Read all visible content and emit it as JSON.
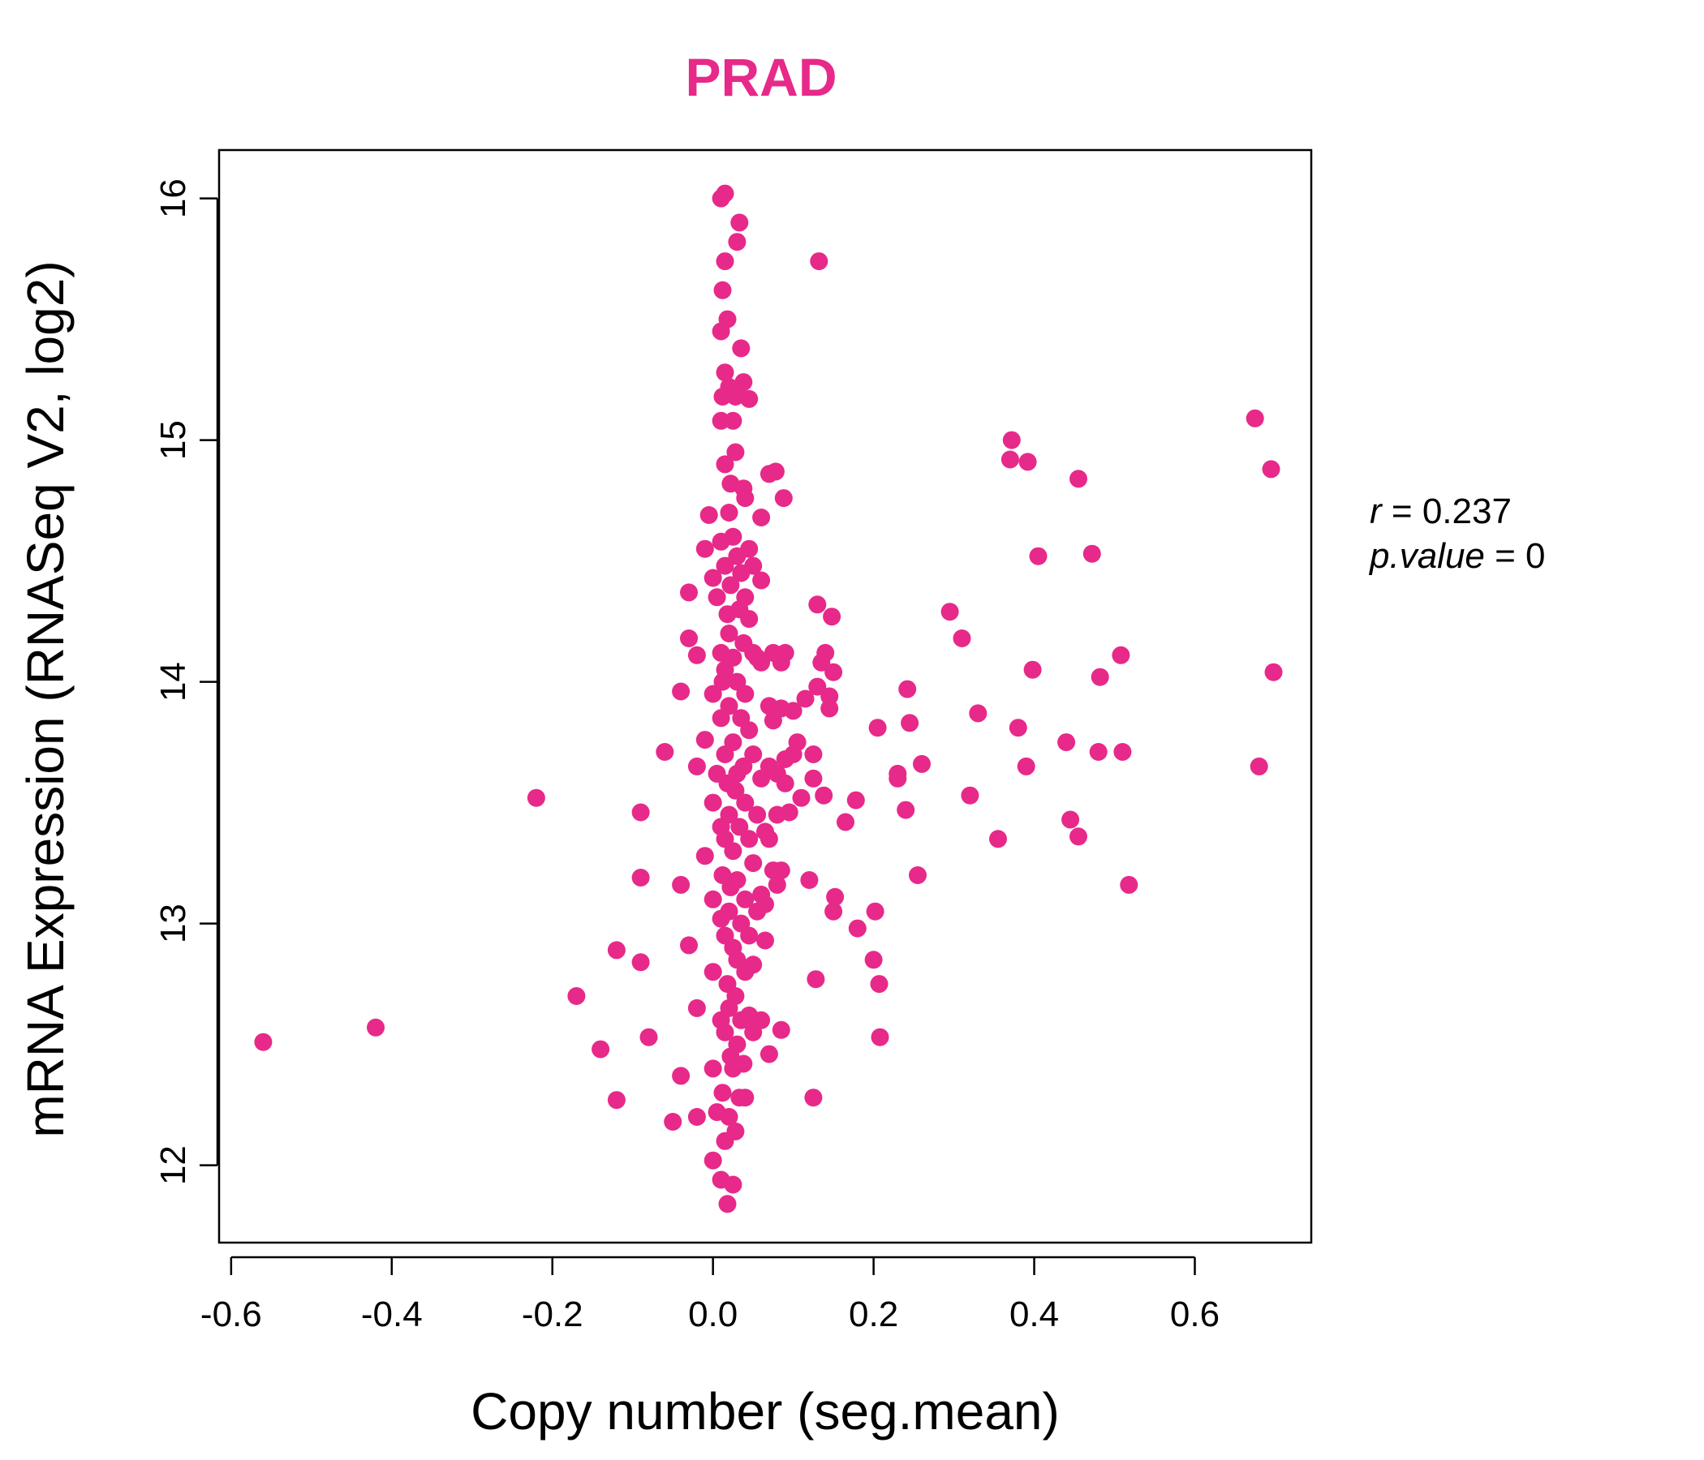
{
  "chart_data": {
    "type": "scatter",
    "title": "PRAD",
    "xlabel": "Copy number (seg.mean)",
    "ylabel": "mRNA Expression (RNASeq V2, log2)",
    "xlim": [
      -0.615,
      0.745
    ],
    "ylim": [
      11.68,
      16.2
    ],
    "xticks": [
      -0.6,
      -0.4,
      -0.2,
      0.0,
      0.2,
      0.4,
      0.6
    ],
    "xtick_labels": [
      "-0.6",
      "-0.4",
      "-0.2",
      "0.0",
      "0.2",
      "0.4",
      "0.6"
    ],
    "yticks": [
      12,
      13,
      14,
      15,
      16
    ],
    "ytick_labels": [
      "12",
      "13",
      "14",
      "15",
      "16"
    ],
    "grid": false,
    "point_color": "#e7298a",
    "annotation": {
      "r_label": "r",
      "r_value": "0.237",
      "p_label": "p.value",
      "p_value": "0"
    },
    "points": [
      [
        -0.56,
        12.51
      ],
      [
        -0.42,
        12.57
      ],
      [
        -0.22,
        13.52
      ],
      [
        -0.17,
        12.7
      ],
      [
        -0.14,
        12.48
      ],
      [
        -0.12,
        12.27
      ],
      [
        -0.12,
        12.89
      ],
      [
        -0.09,
        13.46
      ],
      [
        -0.09,
        13.19
      ],
      [
        -0.09,
        12.84
      ],
      [
        -0.08,
        12.53
      ],
      [
        -0.06,
        13.71
      ],
      [
        -0.05,
        12.18
      ],
      [
        -0.04,
        13.96
      ],
      [
        -0.04,
        13.16
      ],
      [
        -0.04,
        12.37
      ],
      [
        -0.03,
        12.91
      ],
      [
        -0.03,
        14.37
      ],
      [
        -0.03,
        14.18
      ],
      [
        -0.02,
        14.11
      ],
      [
        -0.02,
        13.65
      ],
      [
        -0.02,
        12.2
      ],
      [
        -0.02,
        12.65
      ],
      [
        -0.01,
        14.55
      ],
      [
        -0.01,
        13.76
      ],
      [
        -0.01,
        13.28
      ],
      [
        -0.005,
        14.69
      ],
      [
        0.0,
        14.43
      ],
      [
        0.0,
        13.95
      ],
      [
        0.0,
        13.5
      ],
      [
        0.0,
        13.1
      ],
      [
        0.0,
        12.8
      ],
      [
        0.0,
        12.4
      ],
      [
        0.0,
        12.02
      ],
      [
        0.005,
        14.35
      ],
      [
        0.005,
        13.62
      ],
      [
        0.005,
        12.22
      ],
      [
        0.01,
        16.0
      ],
      [
        0.01,
        15.45
      ],
      [
        0.01,
        15.08
      ],
      [
        0.01,
        14.58
      ],
      [
        0.01,
        14.12
      ],
      [
        0.01,
        13.85
      ],
      [
        0.01,
        13.4
      ],
      [
        0.01,
        13.02
      ],
      [
        0.01,
        12.6
      ],
      [
        0.01,
        11.94
      ],
      [
        0.012,
        15.62
      ],
      [
        0.012,
        15.18
      ],
      [
        0.012,
        14.0
      ],
      [
        0.012,
        13.2
      ],
      [
        0.012,
        12.3
      ],
      [
        0.015,
        16.02
      ],
      [
        0.015,
        15.74
      ],
      [
        0.015,
        15.28
      ],
      [
        0.015,
        14.9
      ],
      [
        0.015,
        14.48
      ],
      [
        0.015,
        14.05
      ],
      [
        0.015,
        13.7
      ],
      [
        0.015,
        13.35
      ],
      [
        0.015,
        12.95
      ],
      [
        0.015,
        12.55
      ],
      [
        0.015,
        12.1
      ],
      [
        0.018,
        15.5
      ],
      [
        0.018,
        14.28
      ],
      [
        0.018,
        13.58
      ],
      [
        0.018,
        12.75
      ],
      [
        0.018,
        11.84
      ],
      [
        0.02,
        15.22
      ],
      [
        0.02,
        14.7
      ],
      [
        0.02,
        14.2
      ],
      [
        0.02,
        13.9
      ],
      [
        0.02,
        13.45
      ],
      [
        0.02,
        13.05
      ],
      [
        0.02,
        12.65
      ],
      [
        0.02,
        12.2
      ],
      [
        0.022,
        14.82
      ],
      [
        0.022,
        14.4
      ],
      [
        0.022,
        13.15
      ],
      [
        0.022,
        12.45
      ],
      [
        0.025,
        15.08
      ],
      [
        0.025,
        14.6
      ],
      [
        0.025,
        14.1
      ],
      [
        0.025,
        13.75
      ],
      [
        0.025,
        13.3
      ],
      [
        0.025,
        12.9
      ],
      [
        0.025,
        12.4
      ],
      [
        0.025,
        11.92
      ],
      [
        0.028,
        15.18
      ],
      [
        0.028,
        14.95
      ],
      [
        0.028,
        13.55
      ],
      [
        0.028,
        12.7
      ],
      [
        0.028,
        12.14
      ],
      [
        0.03,
        15.82
      ],
      [
        0.03,
        15.2
      ],
      [
        0.03,
        14.52
      ],
      [
        0.03,
        14.0
      ],
      [
        0.03,
        13.62
      ],
      [
        0.03,
        13.18
      ],
      [
        0.03,
        12.85
      ],
      [
        0.03,
        12.5
      ],
      [
        0.033,
        15.9
      ],
      [
        0.033,
        14.3
      ],
      [
        0.033,
        13.4
      ],
      [
        0.033,
        12.28
      ],
      [
        0.035,
        15.38
      ],
      [
        0.035,
        14.45
      ],
      [
        0.035,
        13.85
      ],
      [
        0.035,
        13.0
      ],
      [
        0.035,
        12.6
      ],
      [
        0.038,
        15.24
      ],
      [
        0.038,
        14.8
      ],
      [
        0.038,
        14.16
      ],
      [
        0.038,
        13.65
      ],
      [
        0.038,
        12.42
      ],
      [
        0.04,
        14.76
      ],
      [
        0.04,
        14.35
      ],
      [
        0.04,
        13.95
      ],
      [
        0.04,
        13.5
      ],
      [
        0.04,
        13.1
      ],
      [
        0.04,
        12.8
      ],
      [
        0.04,
        12.28
      ],
      [
        0.045,
        15.17
      ],
      [
        0.045,
        14.55
      ],
      [
        0.045,
        14.26
      ],
      [
        0.045,
        13.8
      ],
      [
        0.045,
        13.35
      ],
      [
        0.045,
        12.95
      ],
      [
        0.045,
        12.62
      ],
      [
        0.05,
        14.48
      ],
      [
        0.05,
        14.12
      ],
      [
        0.05,
        13.7
      ],
      [
        0.05,
        13.25
      ],
      [
        0.05,
        12.83
      ],
      [
        0.05,
        12.55
      ],
      [
        0.055,
        14.1
      ],
      [
        0.055,
        13.45
      ],
      [
        0.055,
        13.05
      ],
      [
        0.06,
        14.68
      ],
      [
        0.06,
        14.42
      ],
      [
        0.06,
        14.08
      ],
      [
        0.06,
        13.6
      ],
      [
        0.06,
        13.12
      ],
      [
        0.06,
        12.6
      ],
      [
        0.065,
        13.38
      ],
      [
        0.065,
        13.08
      ],
      [
        0.065,
        12.93
      ],
      [
        0.07,
        14.86
      ],
      [
        0.07,
        13.9
      ],
      [
        0.07,
        13.65
      ],
      [
        0.07,
        13.35
      ],
      [
        0.07,
        12.46
      ],
      [
        0.075,
        14.12
      ],
      [
        0.075,
        13.84
      ],
      [
        0.075,
        13.22
      ],
      [
        0.078,
        14.87
      ],
      [
        0.08,
        13.62
      ],
      [
        0.08,
        13.45
      ],
      [
        0.08,
        13.16
      ],
      [
        0.085,
        14.08
      ],
      [
        0.085,
        13.89
      ],
      [
        0.085,
        13.22
      ],
      [
        0.085,
        12.56
      ],
      [
        0.088,
        14.76
      ],
      [
        0.09,
        14.12
      ],
      [
        0.09,
        13.68
      ],
      [
        0.09,
        13.58
      ],
      [
        0.095,
        13.46
      ],
      [
        0.1,
        13.7
      ],
      [
        0.1,
        13.88
      ],
      [
        0.105,
        13.75
      ],
      [
        0.11,
        13.52
      ],
      [
        0.115,
        13.93
      ],
      [
        0.12,
        13.18
      ],
      [
        0.125,
        13.7
      ],
      [
        0.125,
        13.6
      ],
      [
        0.125,
        12.28
      ],
      [
        0.128,
        12.77
      ],
      [
        0.13,
        14.32
      ],
      [
        0.13,
        13.98
      ],
      [
        0.132,
        15.74
      ],
      [
        0.135,
        14.08
      ],
      [
        0.138,
        13.53
      ],
      [
        0.14,
        14.12
      ],
      [
        0.145,
        13.94
      ],
      [
        0.145,
        13.89
      ],
      [
        0.148,
        14.27
      ],
      [
        0.15,
        14.04
      ],
      [
        0.15,
        13.05
      ],
      [
        0.152,
        13.11
      ],
      [
        0.165,
        13.42
      ],
      [
        0.178,
        13.51
      ],
      [
        0.18,
        12.98
      ],
      [
        0.2,
        12.85
      ],
      [
        0.202,
        13.05
      ],
      [
        0.205,
        13.81
      ],
      [
        0.207,
        12.75
      ],
      [
        0.208,
        12.53
      ],
      [
        0.23,
        13.62
      ],
      [
        0.23,
        13.6
      ],
      [
        0.24,
        13.47
      ],
      [
        0.242,
        13.97
      ],
      [
        0.245,
        13.83
      ],
      [
        0.255,
        13.2
      ],
      [
        0.26,
        13.66
      ],
      [
        0.295,
        14.29
      ],
      [
        0.31,
        14.18
      ],
      [
        0.32,
        13.53
      ],
      [
        0.33,
        13.87
      ],
      [
        0.355,
        13.35
      ],
      [
        0.37,
        14.92
      ],
      [
        0.372,
        15.0
      ],
      [
        0.38,
        13.81
      ],
      [
        0.39,
        13.65
      ],
      [
        0.392,
        14.91
      ],
      [
        0.398,
        14.05
      ],
      [
        0.405,
        14.52
      ],
      [
        0.44,
        13.75
      ],
      [
        0.445,
        13.43
      ],
      [
        0.455,
        14.84
      ],
      [
        0.455,
        13.36
      ],
      [
        0.472,
        14.53
      ],
      [
        0.48,
        13.71
      ],
      [
        0.482,
        14.02
      ],
      [
        0.508,
        14.11
      ],
      [
        0.51,
        13.71
      ],
      [
        0.518,
        13.16
      ],
      [
        0.675,
        15.09
      ],
      [
        0.68,
        13.65
      ],
      [
        0.695,
        14.88
      ],
      [
        0.698,
        14.04
      ]
    ]
  }
}
